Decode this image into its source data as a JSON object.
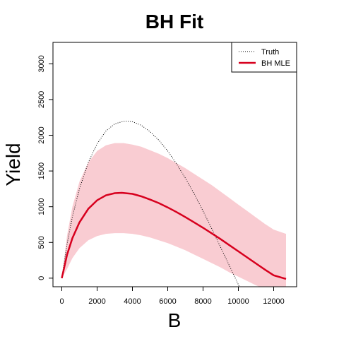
{
  "chart_data": {
    "type": "line",
    "title": "BH Fit",
    "xlabel": "B",
    "ylabel": "Yield",
    "xlim": [
      -500,
      13300
    ],
    "ylim": [
      -120,
      3300
    ],
    "x_ticks": [
      0,
      2000,
      4000,
      6000,
      8000,
      10000,
      12000
    ],
    "y_ticks": [
      0,
      500,
      1000,
      1500,
      2000,
      2500,
      3000
    ],
    "legend": {
      "placement": "top-right",
      "entries": [
        "Truth",
        "BH MLE"
      ]
    },
    "series": [
      {
        "name": "Truth",
        "style": "dotted",
        "color": "#000000",
        "x": [
          0,
          300,
          600,
          1000,
          1500,
          2000,
          2500,
          3000,
          3500,
          3700,
          4000,
          4500,
          5000,
          5500,
          6000,
          6500,
          7000,
          7500,
          8000,
          8500,
          9000,
          9500,
          10000,
          10200,
          10400
        ],
        "y": [
          0,
          480,
          860,
          1250,
          1620,
          1880,
          2060,
          2160,
          2195,
          2198,
          2190,
          2140,
          2050,
          1930,
          1780,
          1600,
          1400,
          1180,
          940,
          690,
          430,
          170,
          -90,
          -200,
          -300
        ]
      },
      {
        "name": "BH MLE",
        "style": "solid",
        "color": "#d7001e",
        "x": [
          0,
          300,
          600,
          1000,
          1500,
          2000,
          2500,
          3000,
          3400,
          4000,
          4500,
          5000,
          5500,
          6000,
          6500,
          7000,
          7500,
          8000,
          8500,
          9000,
          9500,
          10000,
          10500,
          11000,
          11500,
          12000,
          12700
        ],
        "y": [
          0,
          330,
          560,
          780,
          970,
          1090,
          1160,
          1190,
          1195,
          1180,
          1145,
          1100,
          1050,
          990,
          925,
          855,
          780,
          705,
          625,
          545,
          460,
          375,
          290,
          205,
          120,
          40,
          -10
        ]
      }
    ],
    "confidence_band": {
      "color": "#f9ccd2",
      "x": [
        0,
        300,
        600,
        1000,
        1500,
        2000,
        2500,
        3000,
        3500,
        4000,
        4500,
        5000,
        5500,
        6000,
        6500,
        7000,
        7500,
        8000,
        8500,
        9000,
        9500,
        10000,
        10500,
        11000,
        11500,
        12000,
        12700
      ],
      "lower": [
        0,
        130,
        280,
        420,
        530,
        590,
        620,
        630,
        630,
        620,
        600,
        570,
        530,
        490,
        440,
        390,
        330,
        270,
        210,
        150,
        80,
        20,
        -40,
        -100,
        -150,
        -200,
        -250
      ],
      "upper": [
        0,
        600,
        1000,
        1350,
        1620,
        1780,
        1860,
        1890,
        1890,
        1870,
        1840,
        1790,
        1740,
        1680,
        1610,
        1540,
        1460,
        1380,
        1300,
        1210,
        1120,
        1030,
        940,
        850,
        760,
        680,
        620
      ]
    }
  }
}
